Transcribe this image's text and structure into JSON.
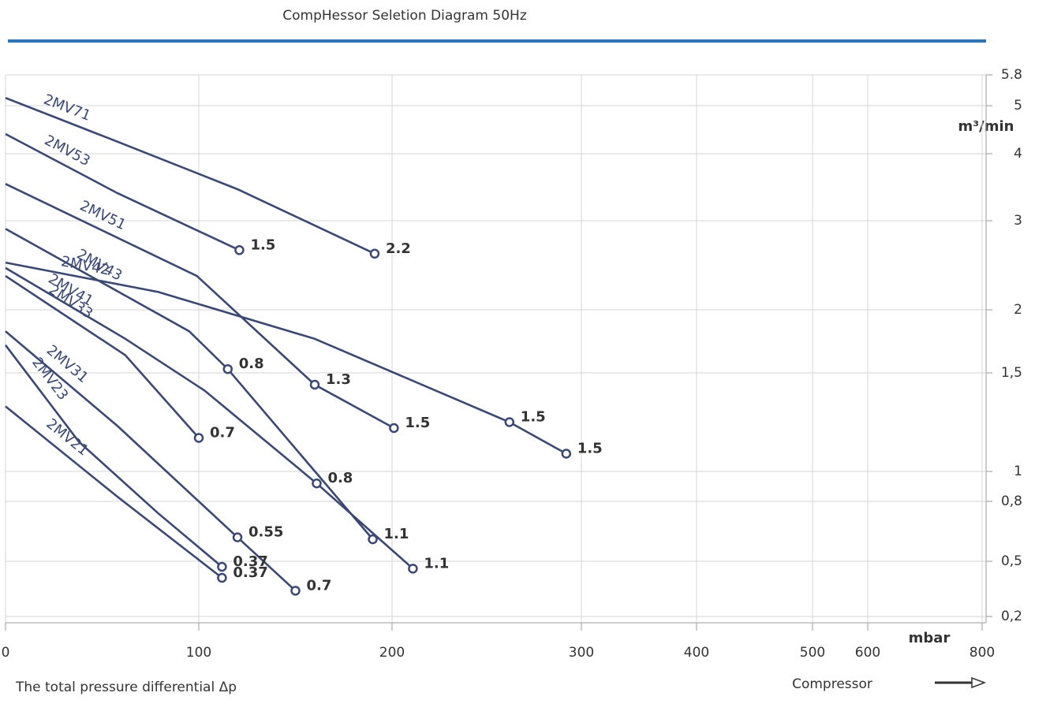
{
  "chart_data": {
    "type": "line",
    "title": "CompHessor Seletion Diagram 50Hz",
    "x_label": "The total pressure differential Δp",
    "x_unit": "mbar",
    "y_unit": "m³/min",
    "footer_label": "Compressor",
    "xlim": [
      0,
      800
    ],
    "xticks": [
      0,
      100,
      200,
      300,
      400,
      500,
      600,
      800
    ],
    "ylim": [
      0.2,
      5.8
    ],
    "yticks": [
      5.8,
      5,
      4,
      3,
      2,
      {
        "value": 1.5,
        "label": "1,5"
      },
      1,
      {
        "value": 0.8,
        "label": "0,8"
      },
      {
        "value": 0.5,
        "label": "0,5"
      },
      {
        "value": 0.2,
        "label": "0,2"
      }
    ],
    "grid": true,
    "color": "#3b4873",
    "series": [
      {
        "name": "2MV71",
        "x": [
          0,
          58,
          120,
          191
        ],
        "values": [
          5.2,
          4.25,
          3.47,
          2.63
        ],
        "markers": [
          {
            "x": 191,
            "y": 2.63,
            "label": 2.2
          }
        ]
      },
      {
        "name": "2MV53",
        "x": [
          0,
          58,
          121
        ],
        "values": [
          4.41,
          3.41,
          2.67
        ],
        "markers": [
          {
            "x": 121,
            "y": 2.67,
            "label": 1.5
          }
        ]
      },
      {
        "name": "2MV51",
        "x": [
          0,
          99,
          160,
          201
        ],
        "values": [
          3.55,
          2.38,
          1.44,
          1.22
        ],
        "markers": [
          {
            "x": 160,
            "y": 1.44,
            "label": 1.3
          },
          {
            "x": 201,
            "y": 1.22,
            "label": 1.5
          }
        ]
      },
      {
        "name": "2MV43",
        "x": [
          0,
          95,
          115,
          190
        ],
        "values": [
          2.91,
          1.83,
          1.53,
          0.61
        ],
        "markers": [
          {
            "x": 115,
            "y": 1.53,
            "label": 0.8
          },
          {
            "x": 190,
            "y": 0.61,
            "label": 1.1
          }
        ]
      },
      {
        "name": "2MV42",
        "x": [
          0,
          79,
          160,
          262,
          292
        ],
        "values": [
          2.53,
          2.2,
          1.77,
          1.25,
          1.09
        ],
        "markers": [
          {
            "x": 262,
            "y": 1.25,
            "label": 1.5
          },
          {
            "x": 292,
            "y": 1.09,
            "label": 1.5
          }
        ]
      },
      {
        "name": "2MV41",
        "x": [
          0,
          62,
          103,
          161,
          211
        ],
        "values": [
          2.47,
          1.77,
          1.41,
          0.92,
          0.46
        ],
        "markers": [
          {
            "x": 161,
            "y": 0.92,
            "label": 0.8
          },
          {
            "x": 211,
            "y": 0.46,
            "label": 1.1
          }
        ]
      },
      {
        "name": "2MV33",
        "x": [
          0,
          62,
          100
        ],
        "values": [
          2.38,
          1.64,
          1.17
        ],
        "markers": [
          {
            "x": 100,
            "y": 1.17,
            "label": 0.7
          }
        ]
      },
      {
        "name": "2MV31",
        "x": [
          0,
          58,
          120,
          150
        ],
        "values": [
          1.83,
          1.23,
          0.62,
          0.34
        ],
        "markers": [
          {
            "x": 120,
            "y": 0.62,
            "label": 0.55
          },
          {
            "x": 150,
            "y": 0.34,
            "label": 0.7
          }
        ]
      },
      {
        "name": "2MV23",
        "x": [
          0,
          38,
          79,
          112
        ],
        "values": [
          1.72,
          1.15,
          0.74,
          0.47
        ],
        "markers": [
          {
            "x": 112,
            "y": 0.47,
            "label": 0.37
          }
        ]
      },
      {
        "name": "2MV21",
        "x": [
          0,
          58,
          112
        ],
        "values": [
          1.33,
          0.83,
          0.41
        ],
        "markers": [
          {
            "x": 112,
            "y": 0.41,
            "label": 0.37
          }
        ]
      }
    ]
  }
}
